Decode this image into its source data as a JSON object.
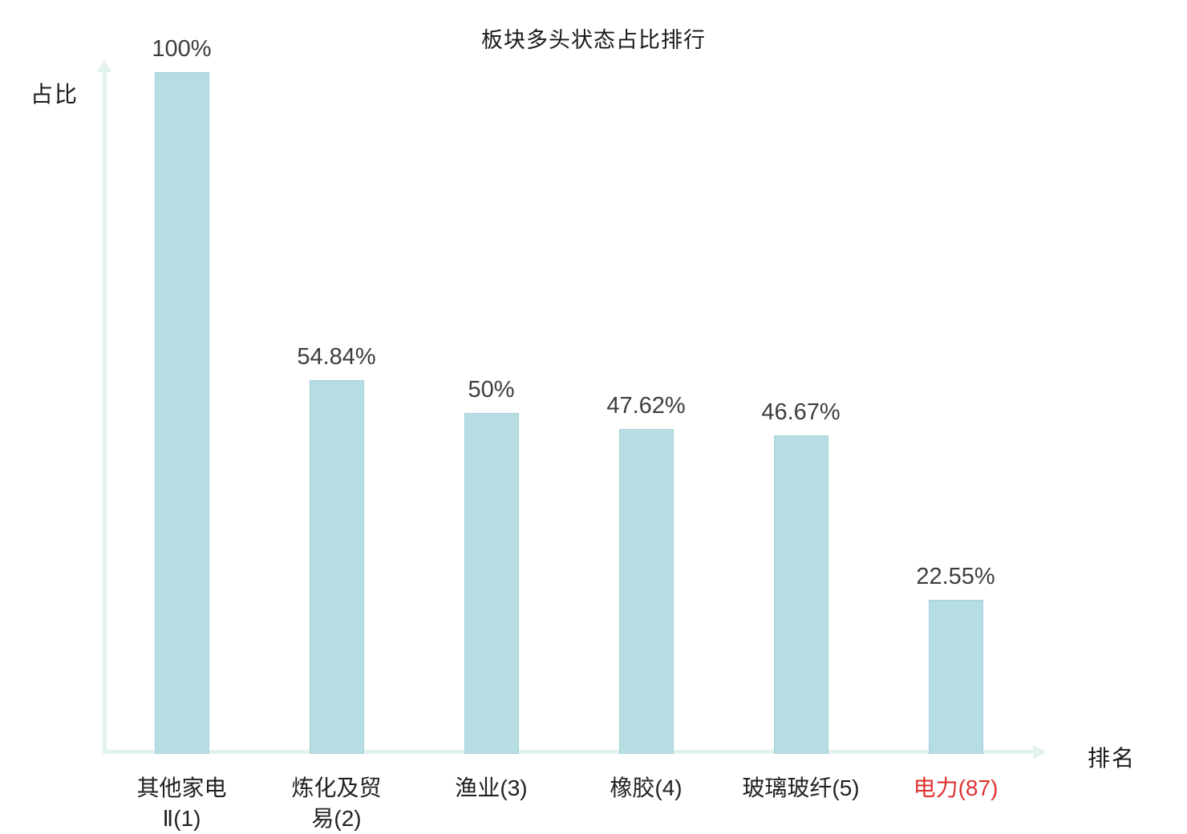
{
  "chart_data": {
    "type": "bar",
    "title": "板块多头状态占比排行",
    "xlabel": "排名",
    "ylabel": "占比",
    "ylim": [
      0,
      100
    ],
    "grid": false,
    "legend_position": "none",
    "categories": [
      "其他家电Ⅱ(1)",
      "炼化及贸易(2)",
      "渔业(3)",
      "橡胶(4)",
      "玻璃玻纤(5)",
      "电力(87)"
    ],
    "category_lines": [
      [
        "其他家电",
        "Ⅱ(1)"
      ],
      [
        "炼化及贸",
        "易(2)"
      ],
      [
        "渔业(3)"
      ],
      [
        "橡胶(4)"
      ],
      [
        "玻璃玻纤(5)"
      ],
      [
        "电力(87)"
      ]
    ],
    "values": [
      100,
      54.84,
      50,
      47.62,
      46.67,
      22.55
    ],
    "value_labels": [
      "100%",
      "54.84%",
      "50%",
      "47.62%",
      "46.67%",
      "22.55%"
    ],
    "highlight_index": 5,
    "colors": {
      "bar_fill": "#b6dde2",
      "bar_border": "#a3d2d9",
      "axis": "#e2f2ee",
      "value_label": "#3d3d3d",
      "category_label": "#222222",
      "highlight_label": "#e03131",
      "title": "#1a1a1a"
    }
  }
}
